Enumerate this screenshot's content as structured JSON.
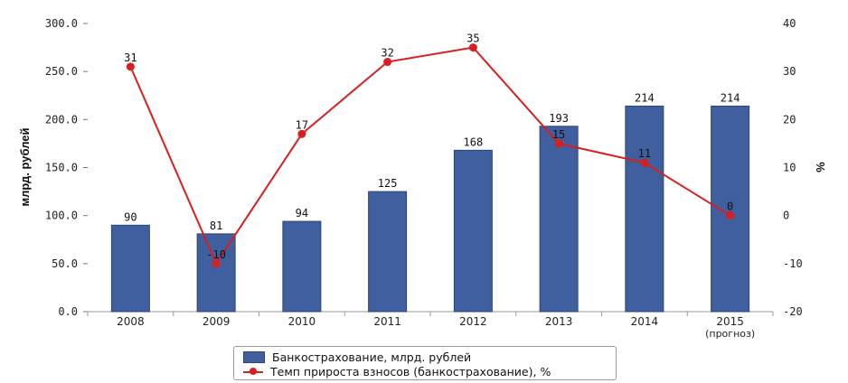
{
  "chart_data": {
    "type": "bar",
    "categories": [
      "2008",
      "2009",
      "2010",
      "2011",
      "2012",
      "2013",
      "2014",
      "2015"
    ],
    "category_sublabels": [
      "",
      "",
      "",
      "",
      "",
      "",
      "",
      "(прогноз)"
    ],
    "series": [
      {
        "name": "Банкострахование, млрд. рублей",
        "type": "bar",
        "axis": "left",
        "values": [
          90,
          81,
          94,
          125,
          168,
          193,
          214,
          214
        ],
        "color": "#3f5f9e"
      },
      {
        "name": "Темп прироста взносов (банкострахование), %",
        "type": "line",
        "axis": "right",
        "values": [
          31,
          -10,
          17,
          32,
          35,
          15,
          11,
          0
        ],
        "color": "#d81e1e"
      }
    ],
    "ylabel": "млрд. рублей",
    "y2label": "%",
    "ylim": [
      0,
      300
    ],
    "yticks": [
      "0.0",
      "50.0",
      "100.0",
      "150.0",
      "200.0",
      "250.0",
      "300.0"
    ],
    "y2lim": [
      -20,
      40
    ],
    "y2ticks": [
      "-20",
      "-10",
      "0",
      "10",
      "20",
      "30",
      "40"
    ],
    "grid": false,
    "legend_position": "bottom"
  }
}
